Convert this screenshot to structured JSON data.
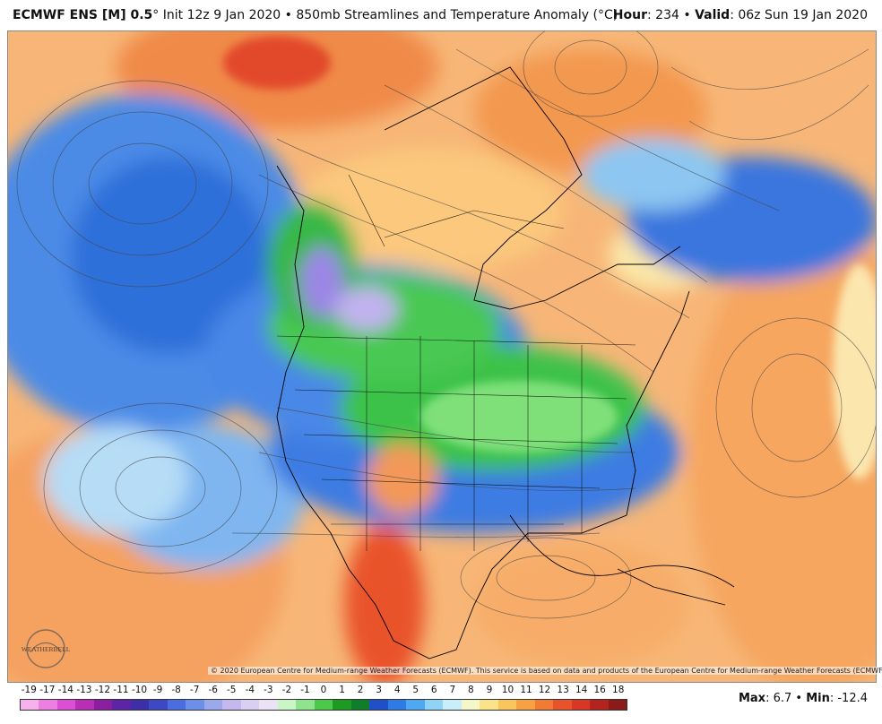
{
  "header": {
    "model": "ECMWF ENS [M] 0.5",
    "init_prefix": "° Init 12z 9 Jan 2020 • 850mb Streamlines and Temperature Anomaly (",
    "unit_symbol": "°",
    "unit_letter": "C",
    "init_suffix": ")",
    "hour_label": "Hour",
    "hour_value": ": 234 • ",
    "valid_label": "Valid",
    "valid_value": ": 06z Sun 19 Jan 2020"
  },
  "copyright": "© 2020 European Centre for Medium-range Weather Forecasts (ECMWF). This service is based on data and products of the European Centre for Medium-range Weather Forecasts (ECMWF).",
  "logo_text": "WEATHERBELL",
  "legend": {
    "labels": [
      "-19",
      "-17",
      "-14",
      "-13",
      "-12",
      "-11",
      "-10",
      "-9",
      "-8",
      "-7",
      "-6",
      "-5",
      "-4",
      "-3",
      "-2",
      "-1",
      "0",
      "1",
      "2",
      "3",
      "4",
      "5",
      "6",
      "7",
      "8",
      "9",
      "10",
      "11",
      "12",
      "13",
      "14",
      "16",
      "18"
    ],
    "colors": [
      "#f7b1ec",
      "#ee7fe2",
      "#dc4fd3",
      "#b82fb6",
      "#8c1f9f",
      "#5b25a6",
      "#3d2fa8",
      "#3c49c3",
      "#4a6ee0",
      "#6c8fe8",
      "#9aa8ec",
      "#c3b9ee",
      "#d9cff2",
      "#ebe3f5",
      "#c9f5c7",
      "#8fe38c",
      "#4cc94a",
      "#1c9a22",
      "#0f7d2a",
      "#1f4fc9",
      "#2f7be6",
      "#4ea8f2",
      "#8fd4f7",
      "#c8eefa",
      "#f4f7c8",
      "#fbe38a",
      "#fbc55d",
      "#f7a143",
      "#f17b34",
      "#e9532b",
      "#d93625",
      "#b4241f",
      "#8b1b18"
    ]
  },
  "maxmin": {
    "max_label": "Max",
    "max_value": ": 6.7 • ",
    "min_label": "Min",
    "min_value": ": -12.4"
  },
  "map": {
    "palette": {
      "ocean_warm": "#f4a261",
      "warm_light": "#fad48c",
      "cold_blue": "#3b7be0",
      "cold_light": "#7fb8f0",
      "green_anomaly": "#3cc24a",
      "purple_anomaly": "#9b86e6",
      "red_anomaly": "#e9532b"
    }
  }
}
